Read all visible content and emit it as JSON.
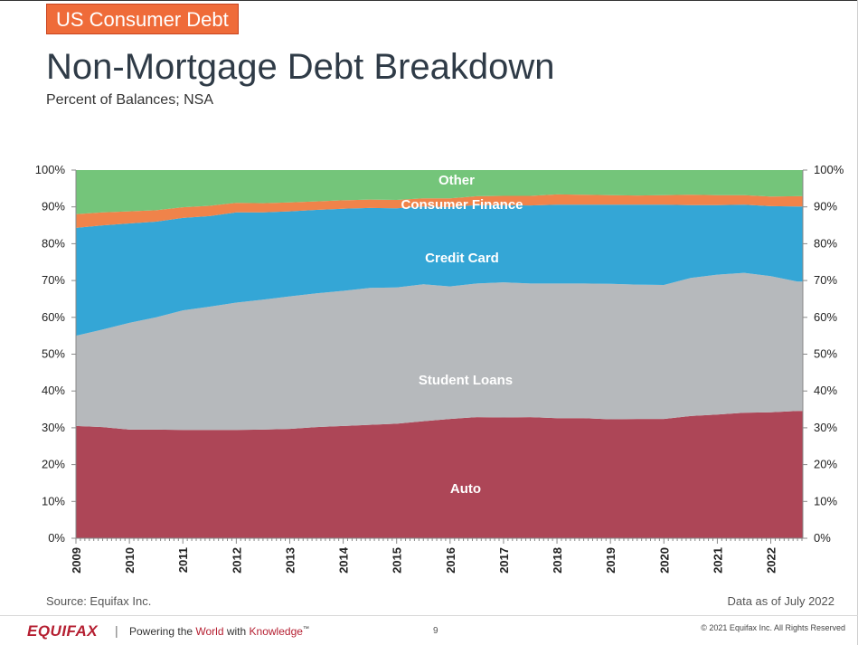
{
  "header": {
    "badge": "US Consumer Debt",
    "title": "Non-Mortgage Debt Breakdown",
    "subtitle": "Percent of Balances; NSA"
  },
  "chart_data": {
    "type": "area",
    "stacked": true,
    "title": "Non-Mortgage Debt Breakdown",
    "subtitle": "Percent of Balances; NSA",
    "y_axes": "both-sides",
    "ylim": [
      0,
      100
    ],
    "y_ticks": [
      "0%",
      "10%",
      "20%",
      "30%",
      "40%",
      "50%",
      "60%",
      "70%",
      "80%",
      "90%",
      "100%"
    ],
    "x_ticks": [
      "2009",
      "2010",
      "2011",
      "2012",
      "2013",
      "2014",
      "2015",
      "2016",
      "2017",
      "2018",
      "2019",
      "2020",
      "2021",
      "2022"
    ],
    "x": [
      2009.0,
      2009.5,
      2010.0,
      2010.5,
      2011.0,
      2011.5,
      2012.0,
      2012.5,
      2013.0,
      2013.5,
      2014.0,
      2014.5,
      2015.0,
      2015.5,
      2016.0,
      2016.5,
      2017.0,
      2017.5,
      2018.0,
      2018.5,
      2019.0,
      2019.5,
      2020.0,
      2020.5,
      2021.0,
      2021.5,
      2022.0,
      2022.5
    ],
    "series": [
      {
        "name": "Auto",
        "color": "#ad4657",
        "values": [
          30.5,
          30.2,
          29.5,
          29.5,
          29.4,
          29.4,
          29.4,
          29.5,
          29.7,
          30.2,
          30.5,
          30.8,
          31.1,
          31.8,
          32.4,
          32.9,
          32.8,
          32.9,
          32.6,
          32.6,
          32.3,
          32.4,
          32.4,
          33.2,
          33.6,
          34.1,
          34.2,
          34.6
        ]
      },
      {
        "name": "Student Loans",
        "color": "#b6b9bc",
        "values": [
          24.5,
          26.5,
          29.0,
          30.5,
          32.5,
          33.5,
          34.6,
          35.3,
          36.0,
          36.3,
          36.7,
          37.2,
          37.0,
          37.2,
          36.0,
          36.3,
          36.7,
          36.3,
          36.6,
          36.6,
          36.8,
          36.5,
          36.4,
          37.5,
          38.0,
          38.0,
          37.0,
          35.1
        ]
      },
      {
        "name": "Credit Card",
        "color": "#34a6d6",
        "values": [
          29.3,
          28.3,
          27.0,
          26.0,
          25.1,
          24.6,
          24.5,
          23.7,
          23.1,
          22.7,
          22.3,
          21.7,
          21.5,
          21.1,
          21.6,
          21.3,
          21.0,
          21.2,
          21.4,
          21.4,
          21.5,
          21.7,
          21.8,
          19.8,
          18.9,
          18.5,
          19.0,
          20.4
        ]
      },
      {
        "name": "Consumer Finance",
        "color": "#f0834a",
        "values": [
          3.7,
          3.5,
          3.3,
          3.1,
          2.9,
          2.8,
          2.6,
          2.5,
          2.4,
          2.3,
          2.3,
          2.3,
          2.3,
          2.2,
          2.3,
          2.4,
          2.5,
          2.6,
          2.8,
          2.7,
          2.6,
          2.5,
          2.6,
          2.8,
          2.7,
          2.6,
          2.6,
          2.8
        ]
      },
      {
        "name": "Other",
        "color": "#74c57a",
        "values": [
          12.0,
          11.5,
          11.2,
          10.9,
          10.1,
          9.7,
          8.9,
          9.0,
          8.8,
          8.5,
          8.2,
          8.0,
          8.1,
          7.7,
          7.7,
          7.1,
          7.0,
          7.0,
          6.6,
          6.7,
          6.8,
          6.9,
          6.8,
          6.7,
          6.8,
          6.8,
          7.2,
          7.1
        ]
      }
    ],
    "labels": [
      "Other",
      "Consumer Finance",
      "Credit Card",
      "Student Loans",
      "Auto"
    ]
  },
  "footer": {
    "source": "Source: Equifax Inc.",
    "data_as_of": "Data as of July 2022",
    "logo": "EQUIFAX",
    "separator": "|",
    "tagline_prefix": "Powering the ",
    "tagline_world": "World",
    "tagline_with": " with ",
    "tagline_knowledge": "Knowledge",
    "tagline_tm": "™",
    "page_number": "9",
    "copyright": "© 2021 Equifax Inc. All Rights Reserved"
  }
}
